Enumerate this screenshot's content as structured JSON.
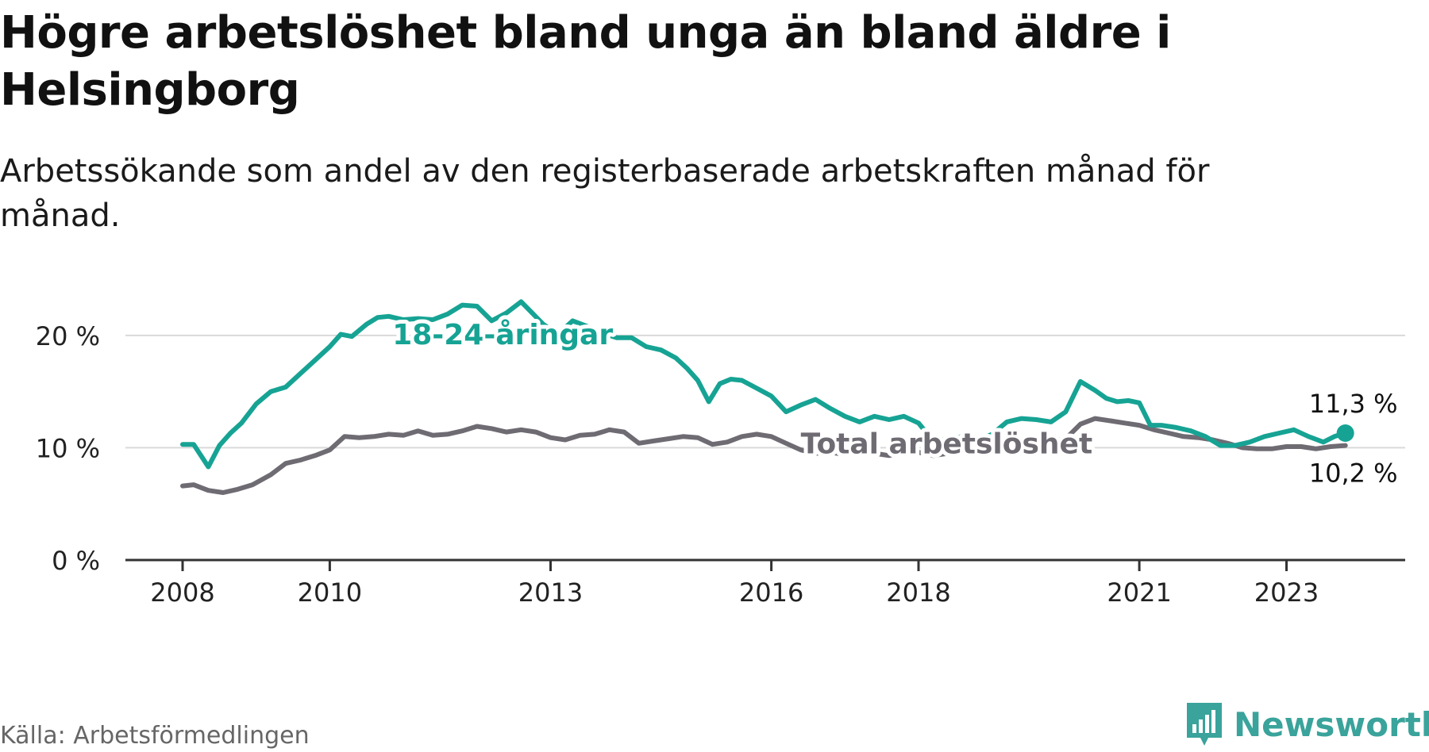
{
  "header": {
    "title": "Högre arbetslöshet bland unga än bland äldre i Helsingborg",
    "subtitle": "Arbetssökande som andel av den registerbaserade arbetskraften månad för månad."
  },
  "footer": {
    "source": "Källa: Arbetsförmedlingen",
    "brand": "Newsworthy"
  },
  "colors": {
    "youth": "#16a394",
    "total": "#6f6b73",
    "brand": "#3aa39b"
  },
  "chart_data": {
    "type": "line",
    "title": "Högre arbetslöshet bland unga än bland äldre i Helsingborg",
    "xlabel": "",
    "ylabel": "",
    "ylim": [
      0,
      25
    ],
    "xlim": [
      2007.5,
      2024.3
    ],
    "y_ticks": [
      0,
      10,
      20
    ],
    "y_tick_labels": [
      "0 %",
      "10 %",
      "20 %"
    ],
    "x_ticks": [
      2008,
      2010,
      2013,
      2016,
      2018,
      2021,
      2023
    ],
    "x_tick_labels": [
      "2008",
      "2010",
      "2013",
      "2016",
      "2018",
      "2021",
      "2023"
    ],
    "grid": true,
    "series": [
      {
        "name": "18-24-åringar",
        "color": "#16a394",
        "x": [
          2008.0,
          2008.15,
          2008.35,
          2008.5,
          2008.65,
          2008.8,
          2009.0,
          2009.2,
          2009.4,
          2009.6,
          2009.8,
          2010.0,
          2010.15,
          2010.3,
          2010.5,
          2010.65,
          2010.8,
          2011.0,
          2011.2,
          2011.4,
          2011.6,
          2011.8,
          2012.0,
          2012.2,
          2012.4,
          2012.6,
          2012.75,
          2012.9,
          2013.1,
          2013.3,
          2013.5,
          2013.7,
          2013.9,
          2014.1,
          2014.3,
          2014.5,
          2014.7,
          2014.85,
          2015.0,
          2015.15,
          2015.3,
          2015.45,
          2015.6,
          2015.8,
          2016.0,
          2016.2,
          2016.4,
          2016.6,
          2016.8,
          2017.0,
          2017.2,
          2017.4,
          2017.6,
          2017.8,
          2018.0,
          2018.2,
          2018.4,
          2018.6,
          2018.8,
          2019.0,
          2019.2,
          2019.4,
          2019.6,
          2019.8,
          2020.0,
          2020.2,
          2020.4,
          2020.55,
          2020.7,
          2020.85,
          2021.0,
          2021.15,
          2021.3,
          2021.5,
          2021.7,
          2021.9,
          2022.1,
          2022.3,
          2022.5,
          2022.7,
          2022.9,
          2023.1,
          2023.3,
          2023.5,
          2023.65,
          2023.8
        ],
        "values": [
          10.3,
          10.3,
          8.3,
          10.2,
          11.3,
          12.2,
          13.9,
          15.0,
          15.4,
          16.6,
          17.8,
          19.0,
          20.1,
          19.9,
          21.0,
          21.6,
          21.7,
          21.4,
          21.5,
          21.4,
          21.9,
          22.7,
          22.6,
          21.3,
          22.0,
          23.0,
          22.0,
          21.0,
          20.1,
          21.3,
          20.8,
          20.2,
          19.8,
          19.8,
          19.0,
          18.7,
          18.0,
          17.1,
          16.0,
          14.1,
          15.7,
          16.1,
          16.0,
          15.3,
          14.6,
          13.2,
          13.8,
          14.3,
          13.5,
          12.8,
          12.3,
          12.8,
          12.5,
          12.8,
          12.2,
          10.6,
          10.8,
          11.0,
          10.6,
          11.2,
          12.3,
          12.6,
          12.5,
          12.3,
          13.2,
          15.9,
          15.1,
          14.4,
          14.1,
          14.2,
          14.0,
          12.0,
          12.0,
          11.8,
          11.5,
          11.0,
          10.2,
          10.2,
          10.5,
          11.0,
          11.3,
          11.6,
          11.0,
          10.5,
          11.0,
          11.3
        ]
      },
      {
        "name": "Total arbetslöshet",
        "color": "#6f6b73",
        "x": [
          2008.0,
          2008.15,
          2008.35,
          2008.55,
          2008.75,
          2008.95,
          2009.2,
          2009.4,
          2009.6,
          2009.8,
          2010.0,
          2010.2,
          2010.4,
          2010.6,
          2010.8,
          2011.0,
          2011.2,
          2011.4,
          2011.6,
          2011.8,
          2012.0,
          2012.2,
          2012.4,
          2012.6,
          2012.8,
          2013.0,
          2013.2,
          2013.4,
          2013.6,
          2013.8,
          2014.0,
          2014.2,
          2014.4,
          2014.6,
          2014.8,
          2015.0,
          2015.2,
          2015.4,
          2015.6,
          2015.8,
          2016.0,
          2016.2,
          2016.4,
          2016.6,
          2016.8,
          2017.0,
          2017.2,
          2017.4,
          2017.6,
          2017.8,
          2018.0,
          2018.2,
          2018.4,
          2018.6,
          2018.8,
          2019.0,
          2019.2,
          2019.4,
          2019.6,
          2019.8,
          2020.0,
          2020.2,
          2020.4,
          2020.6,
          2020.8,
          2021.0,
          2021.2,
          2021.4,
          2021.6,
          2021.8,
          2022.0,
          2022.2,
          2022.4,
          2022.6,
          2022.8,
          2023.0,
          2023.2,
          2023.4,
          2023.6,
          2023.8
        ],
        "values": [
          6.6,
          6.7,
          6.2,
          6.0,
          6.3,
          6.7,
          7.6,
          8.6,
          8.9,
          9.3,
          9.8,
          11.0,
          10.9,
          11.0,
          11.2,
          11.1,
          11.5,
          11.1,
          11.2,
          11.5,
          11.9,
          11.7,
          11.4,
          11.6,
          11.4,
          10.9,
          10.7,
          11.1,
          11.2,
          11.6,
          11.4,
          10.4,
          10.6,
          10.8,
          11.0,
          10.9,
          10.3,
          10.5,
          11.0,
          11.2,
          11.0,
          10.4,
          9.8,
          9.5,
          9.6,
          9.4,
          9.6,
          9.5,
          9.3,
          9.6,
          9.6,
          9.3,
          9.5,
          9.7,
          9.8,
          10.0,
          10.5,
          10.6,
          10.5,
          10.6,
          10.8,
          12.1,
          12.6,
          12.4,
          12.2,
          12.0,
          11.6,
          11.3,
          11.0,
          10.9,
          10.7,
          10.4,
          10.0,
          9.9,
          9.9,
          10.1,
          10.1,
          9.9,
          10.1,
          10.2
        ]
      }
    ],
    "annotations": {
      "youth_label": "18-24-åringar",
      "total_label": "Total arbetslöshet",
      "youth_end_value": "11,3 %",
      "total_end_value": "10,2 %"
    }
  }
}
